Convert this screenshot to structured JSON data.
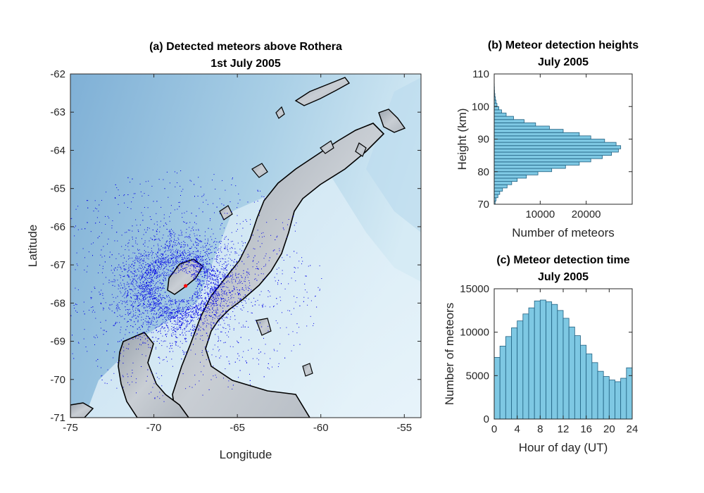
{
  "chart_data": [
    {
      "type": "scatter",
      "title": "(a) Detected meteors above Rothera",
      "subtitle": "1st July 2005",
      "xlabel": "Longitude",
      "ylabel": "Latitude",
      "xlim": [
        -75,
        -54
      ],
      "ylim": [
        -71,
        -62
      ],
      "xticks": [
        -75,
        -70,
        -65,
        -60,
        -55
      ],
      "yticks": [
        -71,
        -70,
        -69,
        -68,
        -67,
        -66,
        -65,
        -64,
        -63,
        -62
      ],
      "station": {
        "lon": -68.1,
        "lat": -67.55
      },
      "colors": {
        "meteor": "#0000e6",
        "station": "#ff0000",
        "coast": "#000000",
        "ocean": "#8fbad9",
        "land": "#b5bcc4"
      }
    },
    {
      "type": "bar",
      "orientation": "horizontal",
      "title": "(b) Meteor detection heights",
      "subtitle": "July 2005",
      "xlabel": "Number of meteors",
      "ylabel": "Height (km)",
      "xlim": [
        0,
        30000
      ],
      "ylim": [
        70,
        110
      ],
      "xticks": [
        10000,
        20000
      ],
      "yticks": [
        70,
        80,
        90,
        100,
        110
      ],
      "bin_width": 1,
      "height_bins": [
        70,
        71,
        72,
        73,
        74,
        75,
        76,
        77,
        78,
        79,
        80,
        81,
        82,
        83,
        84,
        85,
        86,
        87,
        88,
        89,
        90,
        91,
        92,
        93,
        94,
        95,
        96,
        97,
        98,
        99,
        100,
        101,
        102,
        103,
        104,
        105,
        106,
        107,
        108
      ],
      "values": [
        200,
        400,
        800,
        1200,
        1800,
        2800,
        3800,
        5000,
        7000,
        9500,
        12500,
        15500,
        18500,
        21000,
        23500,
        25500,
        27000,
        27500,
        26500,
        24000,
        21000,
        18500,
        15000,
        12000,
        9000,
        6500,
        4200,
        2600,
        1600,
        1000,
        600,
        400,
        250,
        150,
        80,
        50,
        30,
        15,
        5
      ],
      "bar_color": "#7ec8e3"
    },
    {
      "type": "bar",
      "title": "(c) Meteor detection time",
      "subtitle": "July 2005",
      "xlabel": "Hour of day (UT)",
      "ylabel": "Number of meteors",
      "xlim": [
        0,
        24
      ],
      "ylim": [
        0,
        15000
      ],
      "xticks": [
        0,
        4,
        8,
        12,
        16,
        20,
        24
      ],
      "yticks": [
        0,
        5000,
        10000,
        15000
      ],
      "categories": [
        0,
        1,
        2,
        3,
        4,
        5,
        6,
        7,
        8,
        9,
        10,
        11,
        12,
        13,
        14,
        15,
        16,
        17,
        18,
        19,
        20,
        21,
        22,
        23
      ],
      "values": [
        7100,
        8400,
        9500,
        10500,
        11300,
        12100,
        12800,
        13600,
        13700,
        13500,
        13200,
        12500,
        11600,
        10600,
        9600,
        8500,
        7500,
        6500,
        5500,
        4900,
        4500,
        4300,
        4700,
        5900
      ],
      "bar_color": "#7ec8e3"
    }
  ]
}
